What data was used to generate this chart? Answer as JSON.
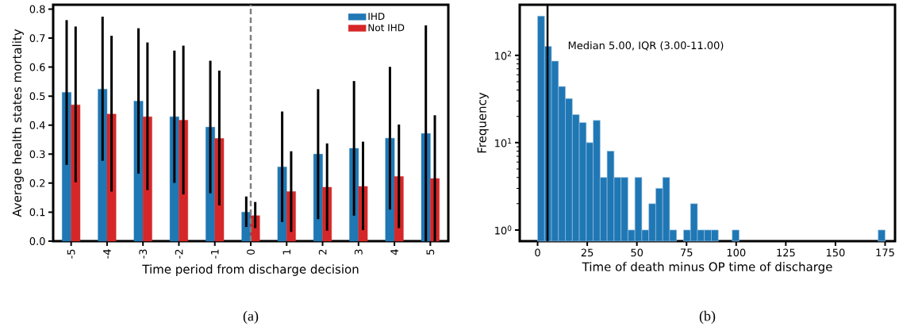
{
  "chart_data": [
    {
      "type": "bar",
      "xlabel": "Time period from discharge decision",
      "ylabel": "Average health states mortality",
      "categories": [
        "-5",
        "-4",
        "-3",
        "-2",
        "-1",
        "0",
        "1",
        "2",
        "3",
        "4",
        "5"
      ],
      "series": [
        {
          "name": "IHD",
          "color": "#1f77b4",
          "values": [
            0.513,
            0.524,
            0.483,
            0.429,
            0.393,
            0.1,
            0.256,
            0.3,
            0.32,
            0.355,
            0.371
          ],
          "errors": [
            [
              0.263,
              0.762
            ],
            [
              0.277,
              0.774
            ],
            [
              0.233,
              0.734
            ],
            [
              0.201,
              0.657
            ],
            [
              0.165,
              0.622
            ],
            [
              0.049,
              0.154
            ],
            [
              0.066,
              0.447
            ],
            [
              0.076,
              0.524
            ],
            [
              0.088,
              0.552
            ],
            [
              0.109,
              0.601
            ],
            [
              0.0,
              0.744
            ]
          ]
        },
        {
          "name": "Not IHD",
          "color": "#d62728",
          "values": [
            0.47,
            0.438,
            0.429,
            0.417,
            0.354,
            0.088,
            0.171,
            0.186,
            0.189,
            0.223,
            0.216
          ],
          "errors": [
            [
              0.203,
              0.74
            ],
            [
              0.171,
              0.708
            ],
            [
              0.176,
              0.685
            ],
            [
              0.161,
              0.674
            ],
            [
              0.123,
              0.588
            ],
            [
              0.045,
              0.135
            ],
            [
              0.032,
              0.31
            ],
            [
              0.036,
              0.337
            ],
            [
              0.038,
              0.343
            ],
            [
              0.045,
              0.402
            ],
            [
              0.0,
              0.434
            ]
          ]
        }
      ],
      "ylim": [
        0,
        0.815
      ],
      "yticks": [
        {
          "value": 0,
          "label": "0.0"
        },
        {
          "value": 0.1,
          "label": "0.1"
        },
        {
          "value": 0.2,
          "label": "0.2"
        },
        {
          "value": 0.3,
          "label": "0.3"
        },
        {
          "value": 0.4,
          "label": "0.4"
        },
        {
          "value": 0.5,
          "label": "0.5"
        },
        {
          "value": 0.6,
          "label": "0.6"
        },
        {
          "value": 0.7,
          "label": "0.7"
        },
        {
          "value": 0.8,
          "label": "0.8"
        }
      ],
      "ref_lines": [
        {
          "axis": "x",
          "value": "0",
          "color": "#808080",
          "line_style": "dashed"
        }
      ],
      "legend": "top right",
      "annotations": [
        "(a)"
      ]
    },
    {
      "type": "histogram",
      "xlabel": "Time of death minus OP time of discharge",
      "ylabel": "Frequency",
      "color": "#1f77b4",
      "bins": [
        0,
        3.5,
        7,
        10.5,
        14,
        17.5,
        21,
        24.5,
        28,
        31.5,
        35,
        38.5,
        42,
        45.5,
        49,
        52.5,
        56,
        59.5,
        63,
        66.5,
        70,
        73.5,
        77,
        80.5,
        84,
        87.5,
        91,
        94.5,
        98,
        101.5,
        105,
        108.5,
        112,
        115.5,
        119,
        122.5,
        126,
        129.5,
        133,
        136.5,
        140,
        143.5,
        147,
        150.5,
        154,
        157.5,
        161,
        164.5,
        168,
        171.5,
        175
      ],
      "values": [
        282,
        127,
        86,
        44,
        32,
        21,
        17,
        10,
        18,
        4,
        8,
        4,
        4,
        1,
        4,
        1,
        2,
        3,
        4,
        1,
        null,
        1,
        2,
        1,
        1,
        1,
        null,
        null,
        1,
        null,
        null,
        null,
        null,
        null,
        null,
        null,
        null,
        null,
        null,
        null,
        null,
        null,
        null,
        null,
        null,
        null,
        null,
        null,
        null,
        1
      ],
      "log": "y",
      "xlim": [
        -9,
        180
      ],
      "xticks": [
        0,
        25,
        50,
        75,
        100,
        125,
        150,
        175
      ],
      "ylim": [
        0.745,
        380
      ],
      "yticks": [
        {
          "value": 1,
          "label": "10$^{0}$"
        },
        {
          "value": 10,
          "label": "10$^{1}$"
        },
        {
          "value": 100,
          "label": "10$^{2}$"
        }
      ],
      "ref_lines": [
        {
          "axis": "x",
          "value": 5,
          "color": "#000000",
          "line_style": "solid",
          "label": "Median 5.00, IQR (3.00-11.00)"
        }
      ],
      "annotations": [
        "(b)"
      ]
    }
  ]
}
